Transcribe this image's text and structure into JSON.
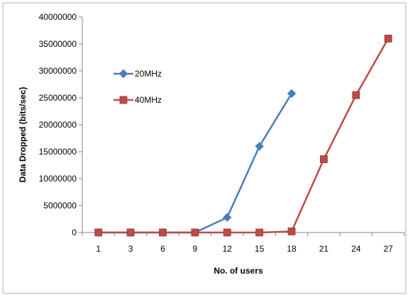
{
  "chart_data": {
    "type": "line",
    "title": "",
    "xlabel": "No. of users",
    "ylabel": "Data Dropped (bits/sec)",
    "categories": [
      "1",
      "3",
      "6",
      "9",
      "12",
      "15",
      "18",
      "21",
      "24",
      "27"
    ],
    "ylim": [
      0,
      40000000
    ],
    "yticks": [
      "0",
      "5000000",
      "10000000",
      "15000000",
      "20000000",
      "25000000",
      "30000000",
      "35000000",
      "40000000"
    ],
    "grid": false,
    "legend_position": "upper-left inside plot",
    "series": [
      {
        "name": "20MHz",
        "color": "#4a7ebb",
        "marker": "diamond",
        "values": [
          0,
          0,
          0,
          0,
          2800000,
          16000000,
          25800000,
          null,
          null,
          null
        ]
      },
      {
        "name": "40MHz",
        "color": "#be4b48",
        "marker": "square",
        "values": [
          0,
          0,
          0,
          0,
          0,
          0,
          200000,
          13600000,
          25500000,
          36000000
        ]
      }
    ]
  }
}
